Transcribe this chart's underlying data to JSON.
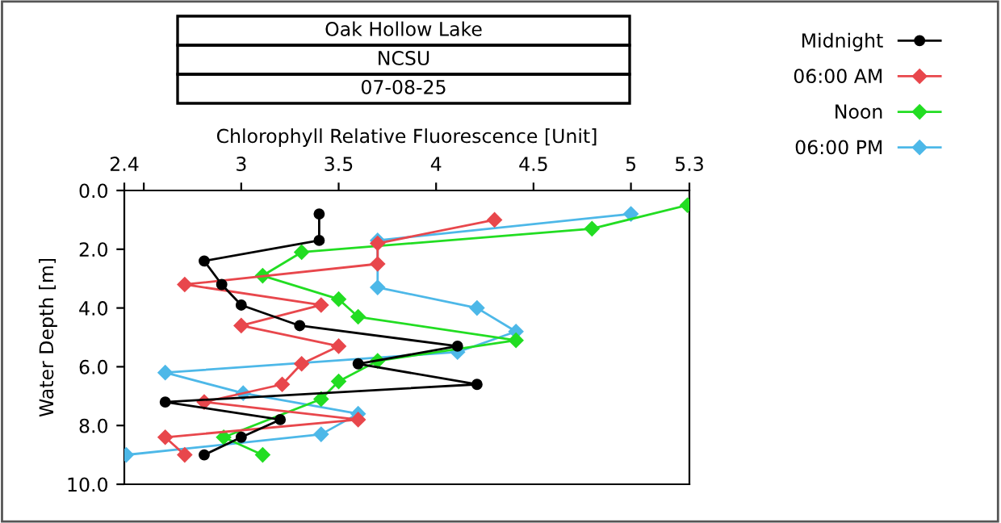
{
  "chart_data": {
    "type": "line",
    "title": "Oak Hollow Lake",
    "subtitle": "NCSU",
    "annotations": [
      "07-08-25"
    ],
    "xlabel": "Chlorophyll Relative Fluorescence [Unit]",
    "ylabel": "Water Depth [m]",
    "xlim": [
      2.4,
      5.3
    ],
    "xticks": [
      2.4,
      {
        "value": 2.5,
        "label": null
      },
      3,
      3.5,
      4,
      4.5,
      5,
      5.3
    ],
    "ylim": [
      10.0,
      0.0
    ],
    "yticks": [
      {
        "value": 0,
        "label": "0.0"
      },
      {
        "value": 2,
        "label": "2.0"
      },
      {
        "value": 4,
        "label": "4.0"
      },
      {
        "value": 6,
        "label": "6.0"
      },
      {
        "value": 8,
        "label": "8.0"
      },
      {
        "value": 10,
        "label": "10.0"
      }
    ],
    "grid": false,
    "legend": "right",
    "line_style": "solid",
    "series": [
      {
        "name": "Midnight",
        "color": "#000000",
        "marker": "circle",
        "x": [
          3.4,
          3.4,
          2.81,
          2.9,
          3.0,
          3.3,
          4.11,
          3.6,
          4.21,
          2.61,
          3.2,
          3.0,
          2.81
        ],
        "values": [
          0.8,
          1.7,
          2.4,
          3.2,
          3.9,
          4.6,
          5.3,
          5.9,
          6.6,
          7.2,
          7.8,
          8.4,
          9.0
        ]
      },
      {
        "name": "06:00 AM",
        "color": "#e8474c",
        "marker": "diamond",
        "x": [
          4.3,
          3.7,
          3.7,
          2.71,
          3.41,
          3.0,
          3.5,
          3.31,
          3.21,
          2.81,
          3.6,
          2.61,
          2.71
        ],
        "values": [
          1.0,
          1.8,
          2.5,
          3.2,
          3.9,
          4.6,
          5.3,
          5.9,
          6.6,
          7.2,
          7.8,
          8.4,
          9.0
        ]
      },
      {
        "name": "Noon",
        "color": "#22dd22",
        "marker": "diamond",
        "x": [
          5.29,
          4.8,
          3.31,
          3.11,
          3.5,
          3.6,
          4.41,
          3.7,
          3.5,
          3.41,
          2.91,
          3.11
        ],
        "values": [
          0.5,
          1.3,
          2.1,
          2.9,
          3.7,
          4.3,
          5.1,
          5.8,
          6.5,
          7.1,
          8.4,
          9.0
        ]
      },
      {
        "name": "06:00 PM",
        "color": "#4db8e8",
        "marker": "diamond",
        "x": [
          5.0,
          3.7,
          3.7,
          4.21,
          4.41,
          4.11,
          2.61,
          3.01,
          3.6,
          3.41,
          2.41
        ],
        "values": [
          0.8,
          1.7,
          3.3,
          4.0,
          4.8,
          5.5,
          6.2,
          6.9,
          7.6,
          8.3,
          9.0
        ]
      }
    ]
  }
}
